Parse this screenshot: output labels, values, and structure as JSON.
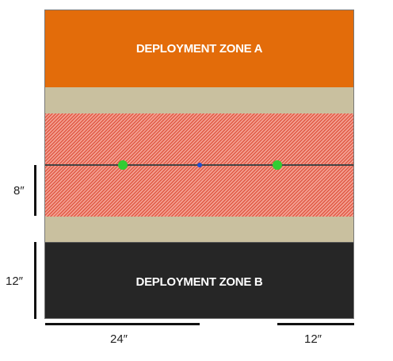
{
  "zones": {
    "a_label": "DEPLOYMENT ZONE A",
    "b_label": "DEPLOYMENT ZONE B"
  },
  "measurements": {
    "left_upper": "8″",
    "left_lower": "12″",
    "bottom_left": "24″",
    "bottom_right": "12″"
  },
  "colors": {
    "zone_a": "#e36c0a",
    "zone_b": "#262626",
    "neutral": "#c9c09f",
    "hatch_band": "#e05a45",
    "objective_primary": "#33cc33",
    "objective_center": "#1f4fd1"
  },
  "objectives": [
    "objective-left",
    "objective-center",
    "objective-right"
  ]
}
